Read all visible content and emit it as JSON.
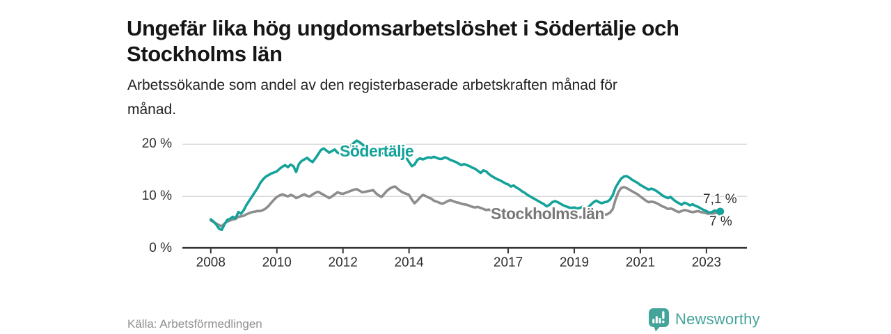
{
  "header": {
    "title": "Ungefär lika hög ungdomsarbetslöshet i Södertälje och Stockholms län",
    "subtitle": "Arbetssökande som andel av den registerbaserade arbetskraften månad för månad."
  },
  "footer": {
    "source": "Källa: Arbetsförmedlingen",
    "brand": "Newsworthy"
  },
  "colors": {
    "sodertalje": "#14a29a",
    "stockholm": "#8d8d8d",
    "stockholm_label": "#787878",
    "axis": "#333333",
    "grid": "#d9d9d9",
    "text": "#2e2e2e",
    "brand": "#45a49a",
    "source_text": "#8f8f8f"
  },
  "chart_data": {
    "type": "line",
    "title": "Ungefär lika hög ungdomsarbetslöshet i Södertälje och Stockholms län",
    "subtitle": "Arbetssökande som andel av den registerbaserade arbetskraften månad för månad.",
    "xlabel": "",
    "ylabel": "",
    "y_unit": "%",
    "ylim": [
      0,
      22
    ],
    "grid": "horizontal",
    "legend_position": "inline",
    "frequency": "monthly",
    "x_start": "2008-01",
    "x_end": "2023-06",
    "yticks": [
      {
        "label": "0 %",
        "value": 0
      },
      {
        "label": "10 %",
        "value": 10
      },
      {
        "label": "20 %",
        "value": 20
      }
    ],
    "xticks": [
      {
        "label": "2008",
        "year": 2008
      },
      {
        "label": "2010",
        "year": 2010
      },
      {
        "label": "2012",
        "year": 2012
      },
      {
        "label": "2014",
        "year": 2014
      },
      {
        "label": "2017",
        "year": 2017
      },
      {
        "label": "2019",
        "year": 2019
      },
      {
        "label": "2021",
        "year": 2021
      },
      {
        "label": "2023",
        "year": 2023
      }
    ],
    "series": [
      {
        "name": "Södertälje",
        "color": "#14a29a",
        "end_label": "7,1 %",
        "end_value": 7.1,
        "values": [
          5.6,
          5.2,
          4.6,
          3.8,
          3.6,
          4.7,
          5.5,
          5.7,
          6.1,
          5.8,
          7.0,
          6.7,
          7.4,
          8.4,
          9.2,
          10.0,
          10.8,
          11.6,
          12.6,
          13.3,
          13.8,
          14.1,
          14.4,
          14.6,
          14.8,
          15.3,
          15.7,
          16.0,
          15.6,
          16.1,
          15.8,
          14.7,
          16.2,
          16.8,
          17.1,
          17.4,
          16.9,
          16.6,
          17.3,
          18.1,
          18.9,
          19.2,
          18.8,
          18.4,
          18.7,
          19.0,
          18.4,
          18.2,
          18.4,
          18.8,
          19.2,
          19.7,
          20.3,
          20.7,
          20.4,
          20.0,
          19.5,
          19.1,
          18.9,
          18.7,
          18.5,
          18.7,
          18.4,
          18.1,
          17.9,
          18.2,
          17.9,
          17.7,
          17.8,
          17.6,
          17.5,
          17.4,
          16.6,
          15.8,
          16.1,
          17.0,
          17.3,
          17.1,
          17.3,
          17.5,
          17.4,
          17.6,
          17.4,
          17.2,
          17.2,
          17.5,
          17.3,
          17.0,
          16.8,
          16.6,
          16.3,
          16.0,
          16.2,
          16.0,
          15.8,
          15.5,
          15.3,
          14.9,
          14.5,
          15.0,
          14.8,
          14.3,
          13.9,
          13.6,
          13.3,
          13.1,
          12.8,
          12.5,
          12.3,
          11.9,
          12.1,
          11.7,
          11.4,
          11.0,
          10.7,
          10.3,
          10.0,
          9.7,
          9.4,
          9.1,
          8.8,
          8.5,
          8.1,
          8.4,
          8.9,
          9.1,
          8.9,
          8.6,
          8.3,
          8.1,
          7.9,
          7.8,
          7.9,
          7.7,
          7.8,
          8.0,
          7.6,
          7.9,
          8.4,
          8.9,
          9.2,
          8.9,
          8.7,
          8.9,
          9.0,
          9.4,
          10.3,
          11.7,
          12.6,
          13.4,
          13.8,
          13.9,
          13.6,
          13.2,
          12.9,
          12.6,
          12.2,
          11.9,
          11.6,
          11.3,
          11.5,
          11.3,
          11.0,
          10.6,
          10.2,
          9.9,
          9.7,
          9.9,
          9.4,
          9.0,
          8.7,
          8.4,
          8.8,
          8.6,
          8.3,
          8.5,
          8.2,
          8.0,
          7.7,
          7.4,
          7.2,
          6.9,
          7.0,
          7.3,
          7.2,
          7.1
        ]
      },
      {
        "name": "Stockholms län",
        "color": "#8d8d8d",
        "end_label": "7 %",
        "end_value": 7.0,
        "values": [
          5.4,
          5.1,
          4.8,
          4.5,
          4.3,
          4.8,
          5.2,
          5.4,
          5.6,
          5.7,
          6.1,
          6.2,
          6.3,
          6.6,
          6.8,
          7.0,
          7.1,
          7.2,
          7.2,
          7.4,
          7.7,
          8.2,
          8.8,
          9.4,
          9.9,
          10.2,
          10.4,
          10.2,
          10.0,
          10.3,
          10.1,
          9.7,
          9.9,
          10.2,
          10.4,
          10.1,
          10.0,
          10.4,
          10.7,
          10.9,
          10.6,
          10.3,
          10.0,
          9.7,
          10.0,
          10.4,
          10.8,
          10.6,
          10.5,
          10.7,
          10.9,
          11.1,
          11.3,
          11.4,
          11.1,
          10.8,
          10.9,
          11.0,
          11.1,
          11.2,
          10.6,
          10.2,
          9.9,
          10.5,
          11.1,
          11.5,
          11.8,
          11.9,
          11.4,
          11.0,
          10.7,
          10.5,
          10.3,
          9.4,
          8.7,
          9.2,
          9.8,
          10.3,
          10.1,
          9.8,
          9.6,
          9.2,
          9.0,
          8.8,
          8.6,
          8.8,
          9.1,
          9.3,
          9.1,
          8.9,
          8.8,
          8.6,
          8.5,
          8.4,
          8.2,
          8.0,
          7.9,
          8.0,
          7.8,
          7.6,
          7.4,
          7.5,
          7.2,
          7.0,
          6.9,
          7.0,
          7.2,
          7.1,
          7.0,
          7.1,
          7.0,
          6.9,
          6.7,
          6.8,
          6.6,
          6.5,
          6.4,
          6.5,
          6.6,
          6.5,
          6.4,
          6.3,
          6.2,
          6.1,
          6.3,
          6.4,
          6.2,
          6.1,
          6.0,
          6.0,
          6.1,
          6.2,
          6.1,
          6.0,
          6.0,
          6.1,
          6.0,
          6.2,
          6.4,
          6.5,
          6.4,
          6.3,
          6.4,
          6.5,
          6.6,
          6.9,
          7.6,
          9.4,
          10.8,
          11.6,
          11.8,
          11.6,
          11.3,
          11.0,
          10.7,
          10.4,
          10.0,
          9.6,
          9.2,
          8.9,
          9.0,
          8.9,
          8.7,
          8.4,
          8.1,
          7.9,
          7.6,
          7.7,
          7.5,
          7.2,
          7.0,
          7.2,
          7.4,
          7.3,
          7.1,
          7.0,
          7.1,
          7.2,
          7.0,
          6.9,
          6.8,
          6.6,
          6.7,
          6.8,
          6.9,
          7.0
        ]
      }
    ]
  }
}
